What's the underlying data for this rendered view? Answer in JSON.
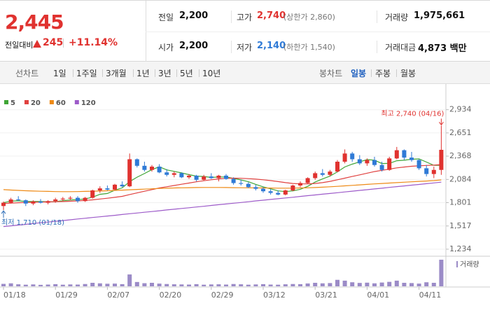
{
  "header": {
    "price": "2,445",
    "change_label": "전일대비",
    "change": "245",
    "change_pct": "+11.14%",
    "stats": [
      {
        "label": "전일",
        "value": "2,200"
      },
      {
        "label": "고가",
        "value": "2,740",
        "note": "(상한가 2,860)"
      },
      {
        "label": "거래량",
        "value": "1,975,661"
      },
      {
        "label": "시가",
        "value": "2,200"
      },
      {
        "label": "저가",
        "value": "2,140",
        "note": "(하한가 1,540)"
      },
      {
        "label": "거래대금",
        "value": "4,873 백만"
      }
    ]
  },
  "tabs": {
    "period": [
      "선차트",
      "1일",
      "1주일",
      "3개월",
      "1년",
      "3년",
      "5년",
      "10년"
    ],
    "candle": [
      "봉차트",
      "일봉",
      "주봉",
      "월봉"
    ]
  },
  "chart_data": {
    "type": "candlestick",
    "up_color": "#e0322f",
    "down_color": "#2f7ad6",
    "grid": true,
    "categories": [
      "01/18",
      null,
      null,
      null,
      null,
      null,
      null,
      "01/29",
      null,
      null,
      null,
      null,
      null,
      null,
      "02/07",
      null,
      null,
      null,
      null,
      null,
      null,
      "02/20",
      null,
      null,
      null,
      null,
      null,
      null,
      "02/29",
      null,
      null,
      null,
      null,
      null,
      null,
      "03/12",
      null,
      null,
      null,
      null,
      null,
      null,
      "03/21",
      null,
      null,
      null,
      null,
      null,
      null,
      "04/01",
      null,
      null,
      null,
      null,
      null,
      null,
      "04/11",
      null,
      null,
      null
    ],
    "open": [
      1760,
      1800,
      1840,
      1830,
      1790,
      1815,
      1800,
      1820,
      1840,
      1850,
      1860,
      1820,
      1860,
      1950,
      1975,
      1960,
      2020,
      2000,
      2330,
      2250,
      2200,
      2240,
      2170,
      2140,
      2160,
      2110,
      2130,
      2080,
      2120,
      2100,
      2130,
      2090,
      2040,
      2030,
      1990,
      1970,
      1940,
      1920,
      1900,
      1950,
      2010,
      2040,
      2100,
      2160,
      2140,
      2180,
      2300,
      2400,
      2330,
      2280,
      2320,
      2260,
      2200,
      2340,
      2440,
      2350,
      2320,
      2220,
      2150,
      2200
    ],
    "high": [
      1815,
      1860,
      1880,
      1840,
      1830,
      1845,
      1830,
      1860,
      1870,
      1880,
      1880,
      1870,
      1960,
      2000,
      2010,
      2030,
      2060,
      2400,
      2340,
      2300,
      2260,
      2270,
      2210,
      2180,
      2170,
      2150,
      2140,
      2140,
      2160,
      2140,
      2150,
      2110,
      2080,
      2050,
      2020,
      1990,
      1970,
      1950,
      1960,
      2020,
      2060,
      2110,
      2180,
      2210,
      2200,
      2320,
      2450,
      2420,
      2380,
      2340,
      2360,
      2300,
      2360,
      2480,
      2450,
      2420,
      2330,
      2260,
      2240,
      2740
    ],
    "low": [
      1710,
      1790,
      1820,
      1760,
      1770,
      1790,
      1780,
      1800,
      1820,
      1830,
      1800,
      1810,
      1850,
      1920,
      1950,
      1950,
      1990,
      1990,
      2230,
      2180,
      2180,
      2160,
      2120,
      2110,
      2100,
      2090,
      2060,
      2070,
      2090,
      2060,
      2080,
      2020,
      2010,
      1980,
      1950,
      1920,
      1900,
      1890,
      1890,
      1940,
      1990,
      2030,
      2080,
      2120,
      2120,
      2170,
      2280,
      2300,
      2260,
      2250,
      2240,
      2180,
      2190,
      2330,
      2320,
      2300,
      2200,
      2120,
      2100,
      2140
    ],
    "close": [
      1800,
      1840,
      1830,
      1790,
      1815,
      1800,
      1820,
      1840,
      1850,
      1860,
      1820,
      1860,
      1950,
      1975,
      1960,
      2020,
      2000,
      2330,
      2250,
      2200,
      2240,
      2170,
      2140,
      2160,
      2110,
      2130,
      2080,
      2120,
      2100,
      2130,
      2090,
      2040,
      2030,
      1990,
      1970,
      1940,
      1920,
      1900,
      1950,
      2010,
      2040,
      2100,
      2160,
      2140,
      2180,
      2300,
      2400,
      2330,
      2280,
      2320,
      2260,
      2200,
      2340,
      2440,
      2350,
      2320,
      2220,
      2150,
      2200,
      2445
    ],
    "series": [
      {
        "name": "5",
        "color": "#3fa535",
        "values": [
          1800,
          1820,
          1823,
          1815,
          1815,
          1815,
          1811,
          1813,
          1825,
          1834,
          1838,
          1846,
          1868,
          1903,
          1913,
          1953,
          1981,
          2057,
          2112,
          2156,
          2204,
          2238,
          2200,
          2182,
          2164,
          2142,
          2124,
          2120,
          2108,
          2114,
          2114,
          2096,
          2078,
          2056,
          2024,
          1994,
          1970,
          1944,
          1936,
          1944,
          1964,
          2000,
          2052,
          2090,
          2124,
          2176,
          2236,
          2270,
          2298,
          2326,
          2318,
          2278,
          2280,
          2312,
          2318,
          2330,
          2334,
          2296,
          2256,
          2257
        ]
      },
      {
        "name": "20",
        "color": "#e0413f",
        "values": [
          1790,
          1795,
          1800,
          1803,
          1806,
          1808,
          1810,
          1812,
          1815,
          1818,
          1822,
          1828,
          1835,
          1845,
          1855,
          1866,
          1878,
          1900,
          1920,
          1940,
          1960,
          1980,
          1995,
          2010,
          2025,
          2040,
          2055,
          2068,
          2080,
          2090,
          2098,
          2100,
          2098,
          2094,
          2088,
          2080,
          2070,
          2058,
          2045,
          2035,
          2030,
          2030,
          2035,
          2045,
          2060,
          2080,
          2100,
          2120,
          2140,
          2160,
          2180,
          2195,
          2210,
          2225,
          2235,
          2245,
          2250,
          2255,
          2258,
          2265
        ]
      },
      {
        "name": "60",
        "color": "#ee8a16",
        "values": [
          1960,
          1955,
          1950,
          1946,
          1943,
          1940,
          1938,
          1936,
          1935,
          1935,
          1936,
          1938,
          1940,
          1943,
          1946,
          1950,
          1954,
          1958,
          1962,
          1966,
          1970,
          1974,
          1977,
          1980,
          1982,
          1984,
          1985,
          1986,
          1986,
          1986,
          1985,
          1984,
          1983,
          1982,
          1981,
          1980,
          1979,
          1978,
          1978,
          1978,
          1980,
          1982,
          1985,
          1990,
          1995,
          2000,
          2006,
          2012,
          2018,
          2024,
          2030,
          2035,
          2040,
          2045,
          2050,
          2055,
          2060,
          2065,
          2070,
          2078
        ]
      },
      {
        "name": "120",
        "color": "#9d5bc9",
        "values": [
          1510,
          1519,
          1528,
          1537,
          1547,
          1556,
          1565,
          1574,
          1583,
          1592,
          1602,
          1611,
          1620,
          1629,
          1638,
          1647,
          1657,
          1666,
          1675,
          1684,
          1693,
          1702,
          1712,
          1721,
          1730,
          1739,
          1748,
          1757,
          1767,
          1776,
          1785,
          1794,
          1803,
          1812,
          1822,
          1831,
          1840,
          1849,
          1858,
          1867,
          1877,
          1886,
          1895,
          1904,
          1913,
          1922,
          1932,
          1941,
          1950,
          1959,
          1968,
          1977,
          1987,
          1996,
          2005,
          2014,
          2023,
          2032,
          2042,
          2051
        ]
      }
    ],
    "volume": {
      "name": "거래량",
      "color": "#9b8bc7",
      "values": [
        180000,
        220000,
        150000,
        120000,
        140000,
        110000,
        130000,
        160000,
        120000,
        140000,
        130000,
        170000,
        260000,
        220000,
        190000,
        200000,
        160000,
        880000,
        320000,
        230000,
        260000,
        200000,
        170000,
        150000,
        140000,
        130000,
        160000,
        120000,
        140000,
        150000,
        130000,
        170000,
        150000,
        120000,
        140000,
        160000,
        130000,
        120000,
        150000,
        170000,
        160000,
        210000,
        260000,
        220000,
        240000,
        480000,
        420000,
        300000,
        250000,
        270000,
        220000,
        280000,
        330000,
        420000,
        260000,
        240000,
        200000,
        300000,
        260000,
        1975661
      ]
    },
    "ylim": [
      1157,
      3247
    ],
    "yticks": [
      {
        "value": 2934,
        "label": "2,934"
      },
      {
        "value": 2651,
        "label": "2,651"
      },
      {
        "value": 2368,
        "label": "2,368"
      },
      {
        "value": 2084,
        "label": "2,084"
      },
      {
        "value": 1801,
        "label": "1,801"
      },
      {
        "value": 1517,
        "label": "1,517"
      },
      {
        "value": 1234,
        "label": "1,234"
      }
    ],
    "annotations": {
      "high": "최고 2,740 (04/16)",
      "low": "최저 1,710 (01/18)"
    }
  }
}
